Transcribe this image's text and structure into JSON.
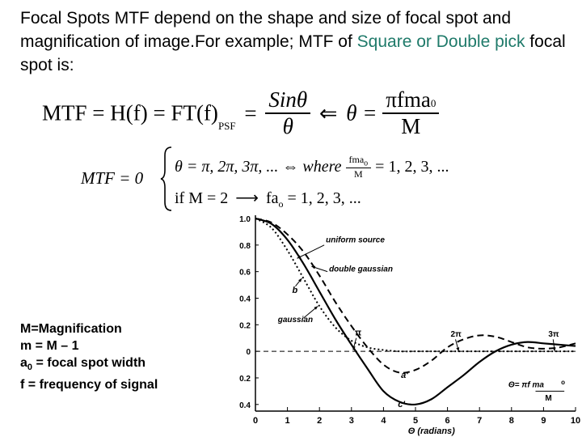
{
  "intro": {
    "part1": "Focal Spots MTF depend on the shape and size of focal spot and magnification of image.For example; MTF of ",
    "highlight1": "Square or Double pick",
    "part2": " focal spot is:"
  },
  "equation1": {
    "lhs": "MTF = H(f) = FT(f)",
    "lhs_sub": "PSF",
    "eq": "=",
    "num1": "Sinθ",
    "den1": "θ",
    "arrow": "⇐",
    "theta_eq": "θ =",
    "num2": "πfma",
    "num2_sub": "0",
    "den2": "M"
  },
  "equation2": {
    "lhs": "MTF = 0",
    "case1": "θ = π, 2π, 3π, ... ⇔ where",
    "case1_frac_num": "fma",
    "case1_frac_num_sub": "o",
    "case1_frac_den": "M",
    "case1_rhs": "= 1, 2, 3, ...",
    "case2": "if M = 2",
    "case2_arrow": "⟶",
    "case2_rhs_a": "fa",
    "case2_rhs_sub": "o",
    "case2_rhs_b": "= 1, 2, 3, ..."
  },
  "definitions": {
    "line1": "M=Magnification",
    "line2": "m = M – 1",
    "line3_a": "a",
    "line3_sub": "0",
    "line3_b": " = focal spot width",
    "line4": "f = frequency of signal"
  },
  "chart_data": {
    "type": "line",
    "x": [
      0,
      0.5,
      1,
      1.5,
      2,
      2.5,
      3,
      3.5,
      4,
      4.5,
      5,
      5.5,
      6,
      6.5,
      7,
      7.5,
      8,
      8.5,
      9,
      9.5,
      10
    ],
    "series": [
      {
        "name": "uniform source",
        "style": "solid",
        "values": [
          1.0,
          0.96,
          0.84,
          0.66,
          0.45,
          0.24,
          0.05,
          -0.13,
          -0.3,
          -0.38,
          -0.4,
          -0.36,
          -0.27,
          -0.18,
          -0.08,
          0.0,
          0.05,
          0.07,
          0.06,
          0.05,
          0.04
        ]
      },
      {
        "name": "double gaussian",
        "style": "dashed",
        "values": [
          1.0,
          0.97,
          0.88,
          0.75,
          0.57,
          0.37,
          0.19,
          0.03,
          -0.1,
          -0.16,
          -0.14,
          -0.07,
          0.03,
          0.09,
          0.12,
          0.11,
          0.07,
          0.03,
          0.02,
          0.03,
          0.06
        ]
      },
      {
        "name": "gaussian",
        "style": "dotted",
        "values": [
          1.0,
          0.93,
          0.76,
          0.55,
          0.34,
          0.18,
          0.08,
          0.03,
          0.01,
          0.0,
          0.0,
          0.0,
          0.0,
          0.0,
          0.0,
          0.0,
          0.0,
          0.0,
          0.0,
          0.0,
          0.0
        ]
      }
    ],
    "xlim": [
      0,
      10
    ],
    "ylim": [
      -0.45,
      1.0
    ],
    "x_ticks": [
      "0",
      "1",
      "2",
      "3",
      "4",
      "5",
      "6",
      "7",
      "8",
      "9",
      "10"
    ],
    "y_ticks": [
      {
        "value": 1.0,
        "label": "1.0"
      },
      {
        "value": 0.8,
        "label": "0.8"
      },
      {
        "value": 0.6,
        "label": "0.6"
      },
      {
        "value": 0.4,
        "label": "0.4"
      },
      {
        "value": 0.2,
        "label": "0.2"
      },
      {
        "value": 0.0,
        "label": "0"
      },
      {
        "value": -0.2,
        "label": "0.2"
      },
      {
        "value": -0.4,
        "label": "0.4"
      }
    ],
    "xlabel": "Θ (radians)",
    "annotations": {
      "uniform_source": "uniform source",
      "double_gaussian": "double gaussian",
      "b": "b",
      "gaussian": "gaussian",
      "pi": "π",
      "two_pi": "2π",
      "three_pi": "3π",
      "a_prime": "a'",
      "c_prime": "c'",
      "theta_formula": "Θ= πf ma",
      "theta_formula_sub": "o",
      "theta_formula_den": "M"
    }
  }
}
